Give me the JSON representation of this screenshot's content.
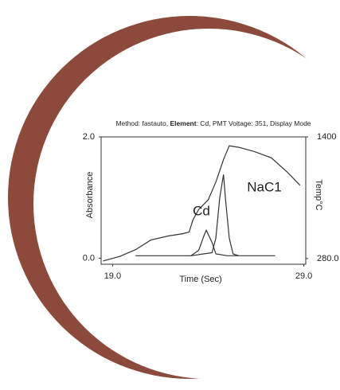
{
  "chart_data": {
    "type": "line",
    "title": [
      "Method: fastauto, ",
      "Element",
      ": Cd, PMT Voltage: 351, Display Mode"
    ],
    "x_label": "Time (Sec)",
    "y_label": "Absorbance",
    "y2_label": "Temp°C",
    "xlim": [
      18.4,
      29.1
    ],
    "xticks": [
      {
        "value": 19,
        "label": "19.0"
      },
      {
        "value": 29,
        "label": "29.0"
      }
    ],
    "ylim": [
      -0.1,
      2.0
    ],
    "yticks": [
      {
        "value": 0,
        "label": "0.0"
      },
      {
        "value": 2,
        "label": "2.0"
      }
    ],
    "y2lim": [
      228,
      1400
    ],
    "y2ticks": [
      {
        "value": 280,
        "label": "280.0"
      },
      1400
    ],
    "grid": false,
    "series": [
      {
        "color": "#333333",
        "axis": "y2",
        "x": [
          18.5,
          19.4,
          20.2,
          21.0,
          21.9,
          22.7,
          23.0,
          23.2,
          23.5,
          24.0,
          24.4,
          24.8,
          25.1,
          25.6,
          26.4,
          27.3,
          28.1,
          28.8
        ],
        "values": [
          258,
          302,
          362,
          451,
          488,
          510,
          525,
          636,
          732,
          821,
          985,
          1192,
          1318,
          1304,
          1266,
          1207,
          1081,
          955
        ]
      },
      {
        "name": "Cd",
        "color": "#333333",
        "x": [
          20.2,
          23.1,
          23.5,
          23.8,
          23.9,
          24.2,
          24.4,
          25.0,
          27.5
        ],
        "values": [
          0.04,
          0.04,
          0.13,
          0.39,
          0.46,
          0.26,
          0.07,
          0.04,
          0.04
        ]
      },
      {
        "name": "NaC1",
        "color": "#333333",
        "x": [
          23.1,
          24.2,
          24.4,
          24.6,
          24.8,
          24.9,
          25.1,
          25.3,
          25.6
        ],
        "values": [
          0.04,
          0.09,
          0.33,
          0.99,
          1.38,
          0.99,
          0.33,
          0.07,
          0.04
        ]
      }
    ]
  }
}
